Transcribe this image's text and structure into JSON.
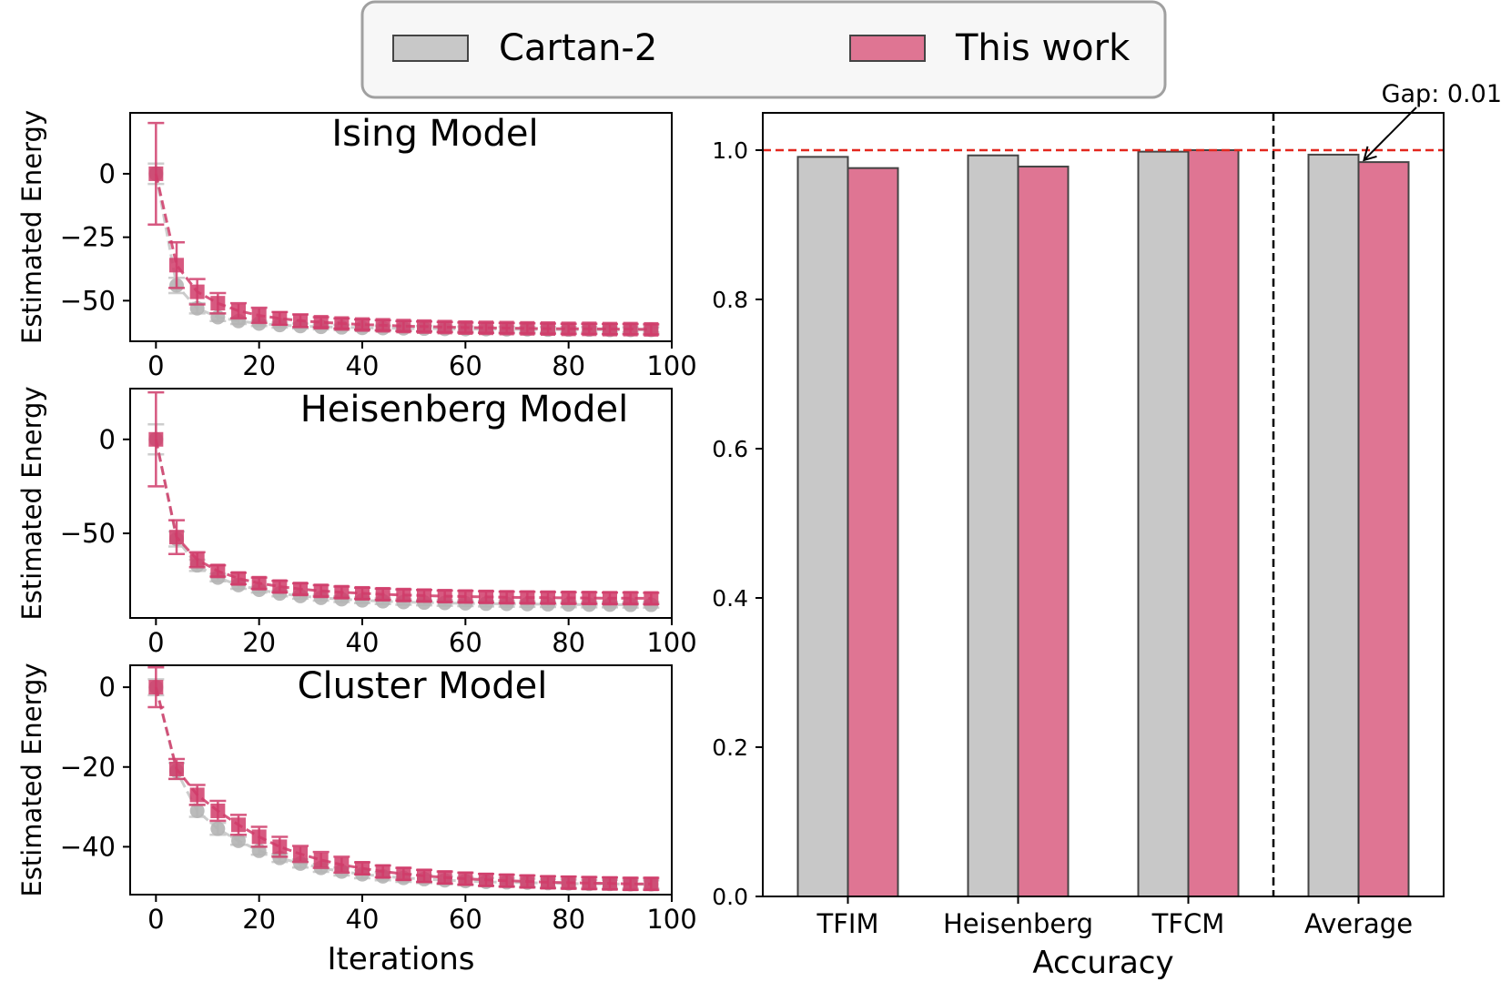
{
  "legend": {
    "entries": [
      {
        "label": "Cartan-2",
        "color": "#c8c8c8"
      },
      {
        "label": "This work",
        "color": "#df7593"
      }
    ]
  },
  "colors": {
    "cartan": "#c8c8c8",
    "cartan_marker": "#b4b4b4",
    "this_work": "#df7593",
    "this_work_line": "#d03c6a",
    "reference_line": "#e3271d",
    "bar_edge": "#444444"
  },
  "chart_data": [
    {
      "type": "line",
      "title": "Ising Model",
      "xlabel": "",
      "ylabel": "Estimated Energy",
      "xlim": [
        -5,
        100
      ],
      "ylim": [
        -66,
        24
      ],
      "xticks": [
        0,
        20,
        40,
        60,
        80,
        100
      ],
      "yticks": [
        0,
        -25,
        -50
      ],
      "ytick_labels": [
        "0",
        "−25",
        "−50"
      ],
      "x": [
        0,
        4,
        8,
        12,
        16,
        20,
        24,
        28,
        32,
        36,
        40,
        44,
        48,
        52,
        56,
        60,
        64,
        68,
        72,
        76,
        80,
        84,
        88,
        92,
        96
      ],
      "series": [
        {
          "name": "Cartan-2",
          "values": [
            0,
            -44,
            -53,
            -56.5,
            -58,
            -59,
            -59.6,
            -60,
            -60.3,
            -60.5,
            -60.7,
            -60.8,
            -60.9,
            -61,
            -61.1,
            -61.2,
            -61.2,
            -61.3,
            -61.3,
            -61.4,
            -61.4,
            -61.4,
            -61.5,
            -61.5,
            -61.5
          ],
          "errors": [
            4,
            3,
            2,
            1.5,
            1.2,
            1,
            1,
            1,
            1,
            1,
            1,
            1,
            1,
            1,
            1,
            1,
            1,
            1,
            1,
            1,
            1,
            1,
            1,
            1,
            1
          ]
        },
        {
          "name": "This work",
          "values": [
            0,
            -36,
            -46.5,
            -51,
            -54,
            -55.8,
            -57,
            -57.9,
            -58.5,
            -59,
            -59.4,
            -59.7,
            -60,
            -60.2,
            -60.4,
            -60.6,
            -60.7,
            -60.8,
            -60.9,
            -61,
            -61.1,
            -61.1,
            -61.2,
            -61.2,
            -61.3
          ],
          "errors": [
            20,
            9,
            5,
            4,
            3,
            3,
            2.5,
            2.5,
            2,
            2,
            2,
            2,
            2,
            2,
            2,
            2,
            2,
            2,
            2,
            2,
            2,
            2,
            2,
            2,
            2
          ]
        }
      ]
    },
    {
      "type": "line",
      "title": "Heisenberg Model",
      "xlabel": "",
      "ylabel": "Estimated Energy",
      "xlim": [
        -5,
        100
      ],
      "ylim": [
        -95,
        27
      ],
      "xticks": [
        0,
        20,
        40,
        60,
        80,
        100
      ],
      "yticks": [
        0,
        -50
      ],
      "ytick_labels": [
        "0",
        "−50"
      ],
      "x": [
        0,
        4,
        8,
        12,
        16,
        20,
        24,
        28,
        32,
        36,
        40,
        44,
        48,
        52,
        56,
        60,
        64,
        68,
        72,
        76,
        80,
        84,
        88,
        92,
        96
      ],
      "series": [
        {
          "name": "Cartan-2",
          "values": [
            0,
            -53,
            -67,
            -73.5,
            -77.5,
            -80,
            -82,
            -83.3,
            -84.3,
            -85,
            -85.6,
            -86.1,
            -86.5,
            -86.8,
            -87,
            -87.2,
            -87.4,
            -87.5,
            -87.6,
            -87.7,
            -87.8,
            -87.9,
            -87.9,
            -88,
            -88
          ],
          "errors": [
            8,
            4,
            3,
            2,
            2,
            1.5,
            1.5,
            1.5,
            1.5,
            1.5,
            1.5,
            1.5,
            1.5,
            1.5,
            1.5,
            1.5,
            1.5,
            1.5,
            1.5,
            1.5,
            1.5,
            1.5,
            1.5,
            1.5,
            1.5
          ]
        },
        {
          "name": "This work",
          "values": [
            0,
            -52,
            -64,
            -70,
            -74,
            -76.5,
            -78.3,
            -79.6,
            -80.6,
            -81.3,
            -81.9,
            -82.4,
            -82.8,
            -83.1,
            -83.4,
            -83.6,
            -83.8,
            -84,
            -84.1,
            -84.2,
            -84.3,
            -84.4,
            -84.5,
            -84.5,
            -84.6
          ],
          "errors": [
            25,
            9,
            4,
            3,
            3,
            3,
            3,
            3,
            3,
            3,
            3,
            3,
            3,
            3,
            3,
            3,
            3,
            3,
            3,
            3,
            3,
            3,
            3,
            3,
            3
          ]
        }
      ]
    },
    {
      "type": "line",
      "title": "Cluster Model",
      "xlabel": "Iterations",
      "ylabel": "Estimated Energy",
      "xlim": [
        -5,
        100
      ],
      "ylim": [
        -52,
        5.5
      ],
      "xticks": [
        0,
        20,
        40,
        60,
        80,
        100
      ],
      "yticks": [
        0,
        -20,
        -40
      ],
      "ytick_labels": [
        "0",
        "−20",
        "−40"
      ],
      "x": [
        0,
        4,
        8,
        12,
        16,
        20,
        24,
        28,
        32,
        36,
        40,
        44,
        48,
        52,
        56,
        60,
        64,
        68,
        72,
        76,
        80,
        84,
        88,
        92,
        96
      ],
      "series": [
        {
          "name": "Cartan-2",
          "values": [
            0,
            -21,
            -31,
            -35.5,
            -38.5,
            -41,
            -42.8,
            -44.2,
            -45.3,
            -46.2,
            -46.9,
            -47.4,
            -47.8,
            -48.1,
            -48.4,
            -48.6,
            -48.8,
            -48.9,
            -49,
            -49.1,
            -49.2,
            -49.3,
            -49.3,
            -49.4,
            -49.4
          ],
          "errors": [
            2,
            2,
            1.5,
            1.5,
            1,
            1,
            1,
            1,
            1,
            1,
            1,
            1,
            1,
            1,
            1,
            1,
            1,
            1,
            1,
            1,
            1,
            1,
            1,
            1,
            1
          ]
        },
        {
          "name": "This work",
          "values": [
            0,
            -20.5,
            -27,
            -31,
            -34.5,
            -37.5,
            -40,
            -41.8,
            -43.3,
            -44.5,
            -45.4,
            -46.2,
            -46.8,
            -47.3,
            -47.7,
            -48,
            -48.3,
            -48.5,
            -48.7,
            -48.9,
            -49,
            -49.1,
            -49.2,
            -49.3,
            -49.3
          ],
          "errors": [
            5,
            2.5,
            2.5,
            2.5,
            2.5,
            2.5,
            2.5,
            2,
            2,
            2,
            1.5,
            1.5,
            1.5,
            1.5,
            1.5,
            1.5,
            1.5,
            1.5,
            1.5,
            1.5,
            1.5,
            1.5,
            1.5,
            1.5,
            1.5
          ]
        }
      ]
    },
    {
      "type": "bar",
      "title": "",
      "xlabel": "Accuracy",
      "ylabel": "",
      "categories": [
        "TFIM",
        "Heisenberg",
        "TFCM",
        "Average"
      ],
      "ylim": [
        0,
        1.05
      ],
      "yticks": [
        0.0,
        0.2,
        0.4,
        0.6,
        0.8,
        1.0
      ],
      "ytick_labels": [
        "0.0",
        "0.2",
        "0.4",
        "0.6",
        "0.8",
        "1.0"
      ],
      "series": [
        {
          "name": "Cartan-2",
          "values": [
            0.991,
            0.993,
            0.998,
            0.994
          ]
        },
        {
          "name": "This work",
          "values": [
            0.976,
            0.978,
            1.0,
            0.984
          ]
        }
      ],
      "reference_line": 1.0,
      "annotation": "Gap: 0.01"
    }
  ]
}
